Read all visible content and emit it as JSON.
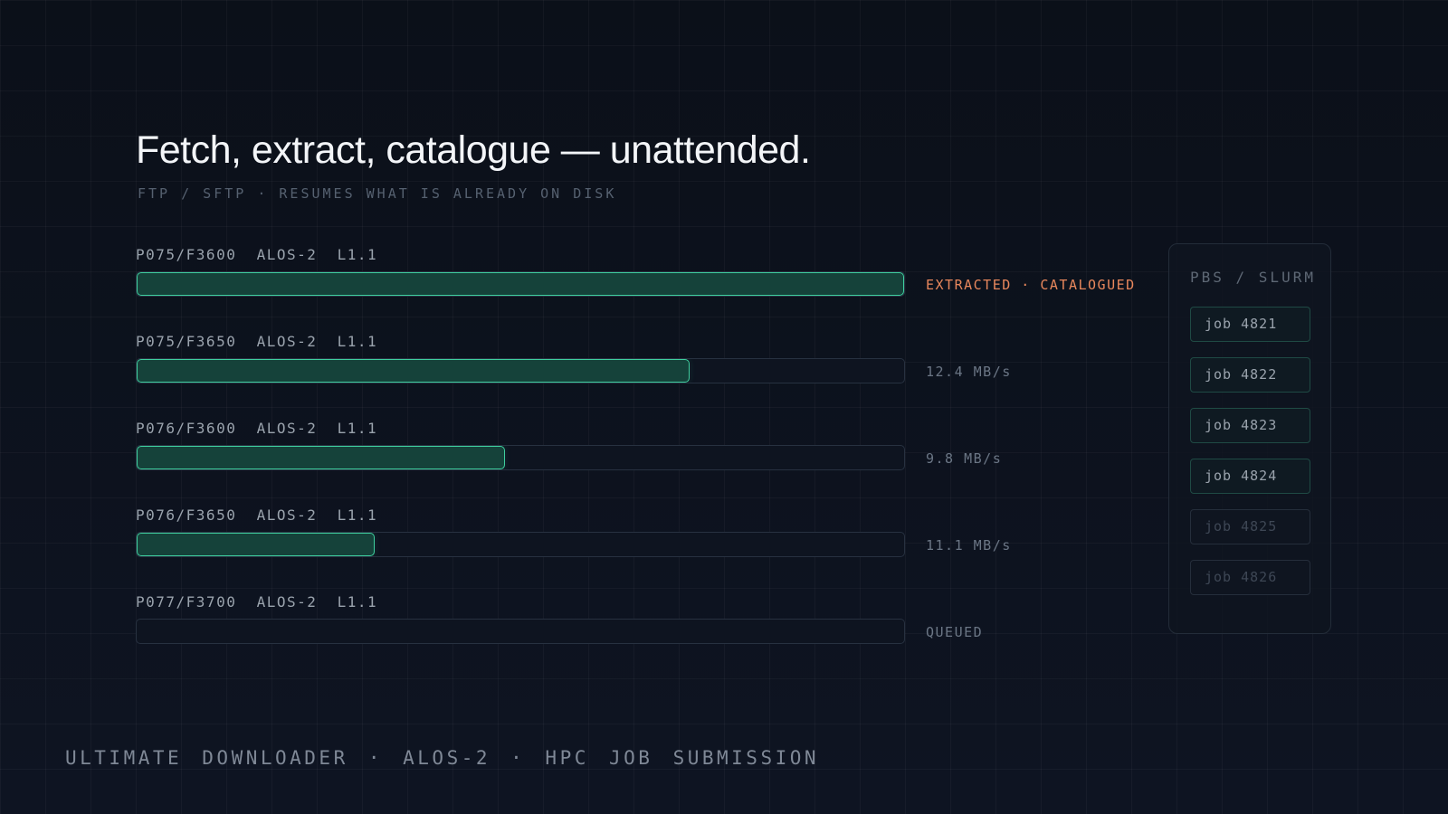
{
  "header": {
    "title": "Fetch, extract, catalogue — unattended.",
    "subtitle": "FTP / SFTP  ·  RESUMES WHAT IS ALREADY ON DISK"
  },
  "downloads": [
    {
      "label": "P075/F3600  ALOS-2  L1.1",
      "progress": 1.0,
      "status": "EXTRACTED · CATALOGUED",
      "state": "done"
    },
    {
      "label": "P075/F3650  ALOS-2  L1.1",
      "progress": 0.72,
      "status": "12.4 MB/s",
      "state": "active"
    },
    {
      "label": "P076/F3600  ALOS-2  L1.1",
      "progress": 0.48,
      "status": "9.8 MB/s",
      "state": "active"
    },
    {
      "label": "P076/F3650  ALOS-2  L1.1",
      "progress": 0.31,
      "status": "11.1 MB/s",
      "state": "active"
    },
    {
      "label": "P077/F3700  ALOS-2  L1.1",
      "progress": 0.0,
      "status": "QUEUED",
      "state": "queued"
    }
  ],
  "scheduler": {
    "title": "PBS / SLURM",
    "jobs": [
      {
        "label": "job 4821",
        "state": "active"
      },
      {
        "label": "job 4822",
        "state": "active"
      },
      {
        "label": "job 4823",
        "state": "active"
      },
      {
        "label": "job 4824",
        "state": "active"
      },
      {
        "label": "job 4825",
        "state": "pending"
      },
      {
        "label": "job 4826",
        "state": "pending"
      }
    ]
  },
  "footer": {
    "text": "ULTIMATE DOWNLOADER  ·  ALOS-2  ·  HPC JOB SUBMISSION"
  },
  "colors": {
    "background": "#0b111b",
    "progress_fill": "#15423a",
    "progress_border": "#3fcf9f",
    "done_status": "#e8875c"
  }
}
